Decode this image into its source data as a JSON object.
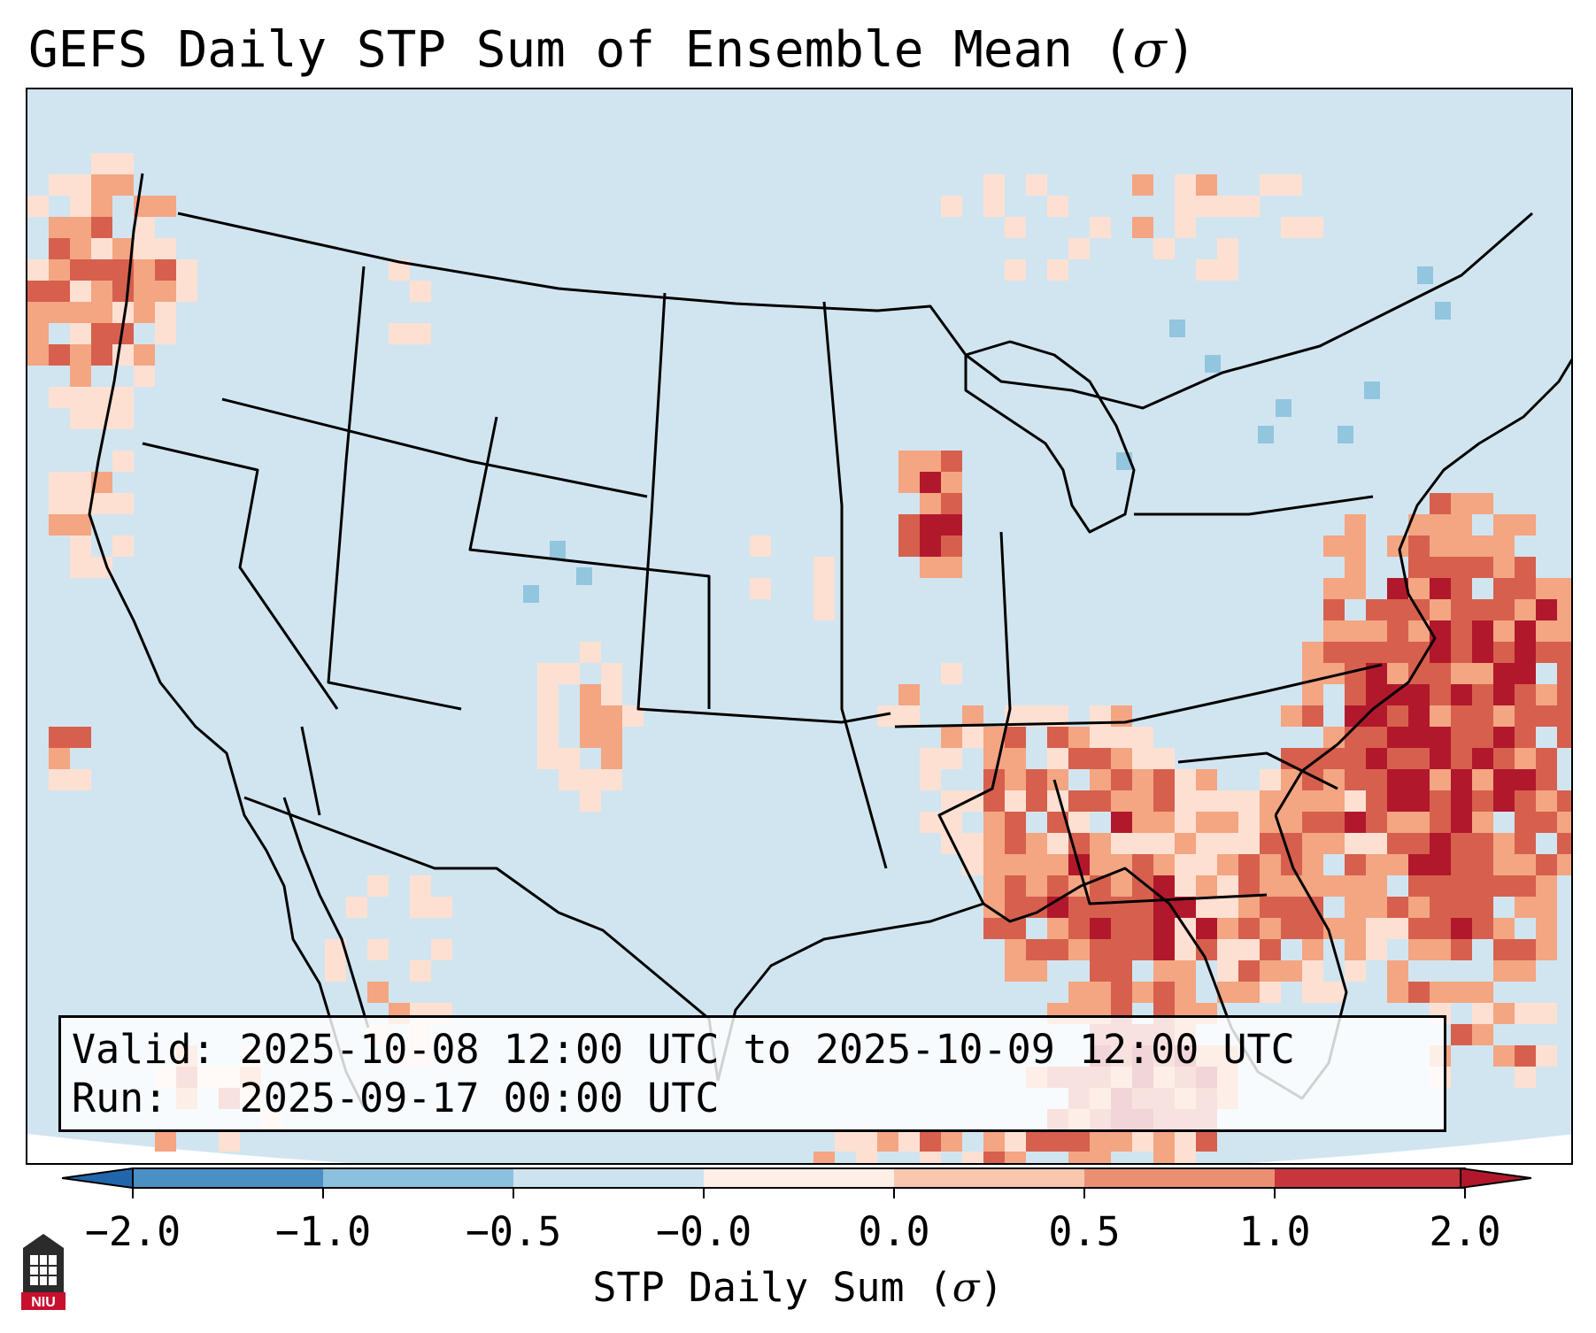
{
  "title": {
    "text": "GEFS Daily STP Sum of Ensemble Mean (",
    "symbol": "σ",
    "close": ")"
  },
  "info": {
    "valid_label": "Valid:",
    "valid_value": "2025-10-08 12:00 UTC to 2025-10-09 12:00 UTC",
    "run_label": "Run:",
    "run_value": "2025-09-17 00:00 UTC"
  },
  "colorbar": {
    "label_text": "STP Daily Sum (",
    "label_symbol": "σ",
    "label_close": ")",
    "ticks": [
      "−2.0",
      "−1.0",
      "−0.5",
      "−0.0",
      "0.0",
      "0.5",
      "1.0",
      "2.0"
    ],
    "bin_colors": [
      "#4a90c4",
      "#8cc0df",
      "#cde3ef",
      "#fdeee6",
      "#f9c7ae",
      "#eb8f72",
      "#c8363d"
    ],
    "under_color": "#2166ac",
    "over_color": "#b2182b"
  },
  "map": {
    "background_color": "#d1e5f0",
    "region": "Continental United States",
    "field": "STP daily sum anomaly",
    "level_colors": {
      "light_blue": "#92c5de",
      "very_light": "#fde0d2",
      "light_red": "#f4a582",
      "medium_red": "#d6604d",
      "dark_red": "#b2182b"
    }
  },
  "logo": {
    "text": "NIU"
  }
}
